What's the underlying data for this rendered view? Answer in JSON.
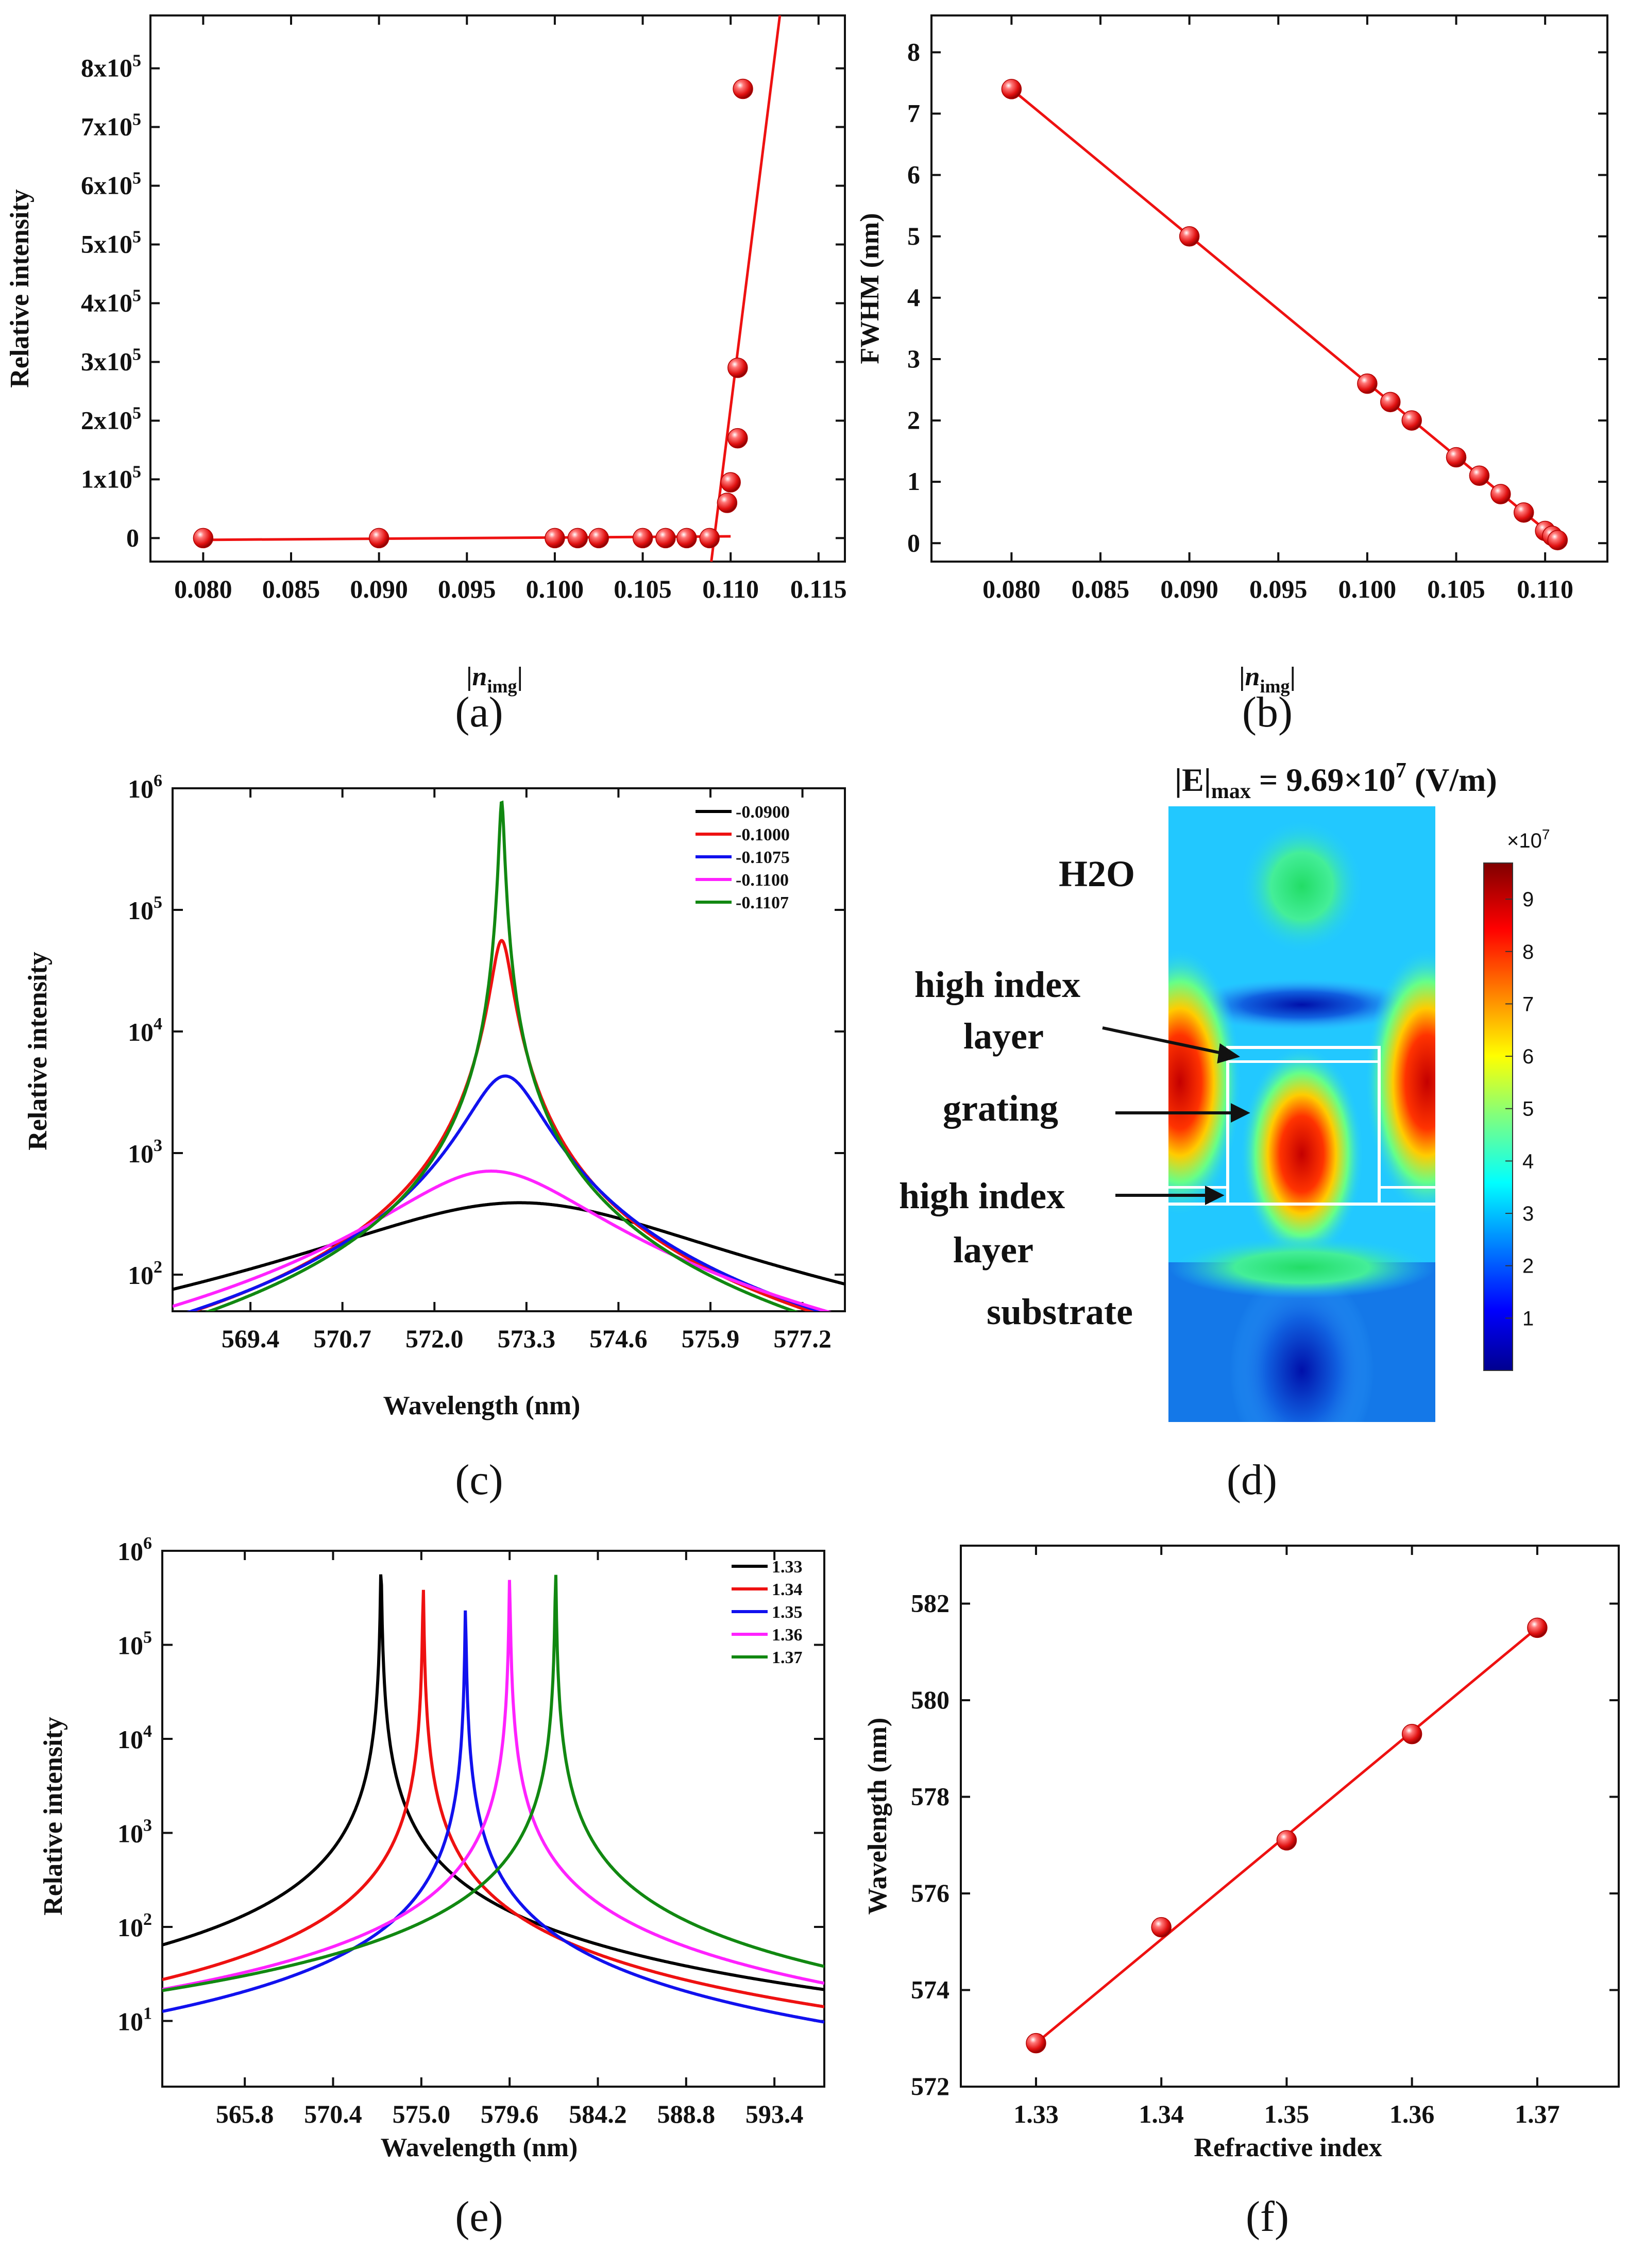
{
  "panels": {
    "a": {
      "caption": "(a)"
    },
    "b": {
      "caption": "(b)"
    },
    "c": {
      "caption": "(c)"
    },
    "d": {
      "caption": "(d)"
    },
    "e": {
      "caption": "(e)"
    },
    "f": {
      "caption": "(f)"
    }
  },
  "colors": {
    "red": "#ee1111",
    "black": "#000000",
    "blue": "#1111ee",
    "magenta": "#ff22ff",
    "green": "#118811"
  },
  "chart_data": [
    {
      "id": "a",
      "type": "scatter",
      "xlabel": "|n_img|",
      "ylabel": "Relative intensity",
      "xlim": [
        0.077,
        0.1165
      ],
      "ylim": [
        -40000,
        890000
      ],
      "xticks": [
        "0.080",
        "0.085",
        "0.090",
        "0.095",
        "0.100",
        "0.105",
        "0.110",
        "0.115"
      ],
      "yticks": [
        "0",
        "1x10^5",
        "2x10^5",
        "3x10^5",
        "4x10^5",
        "5x10^5",
        "6x10^5",
        "7x10^5",
        "8x10^5"
      ],
      "points": [
        [
          0.08,
          0
        ],
        [
          0.09,
          0
        ],
        [
          0.1,
          0
        ],
        [
          0.1013,
          0
        ],
        [
          0.1025,
          0
        ],
        [
          0.105,
          0
        ],
        [
          0.1063,
          0
        ],
        [
          0.1075,
          0
        ],
        [
          0.1088,
          0
        ],
        [
          0.1098,
          60000
        ],
        [
          0.11,
          95000
        ],
        [
          0.1104,
          170000
        ],
        [
          0.1104,
          290000
        ],
        [
          0.1107,
          765000
        ]
      ],
      "fit_lines": [
        [
          [
            0.08,
            -3000
          ],
          [
            0.11,
            3000
          ]
        ],
        [
          [
            0.1089,
            -40000
          ],
          [
            0.1128,
            890000
          ]
        ]
      ]
    },
    {
      "id": "b",
      "type": "scatter",
      "xlabel": "|n_img|",
      "ylabel": "FWHM (nm)",
      "xlim": [
        0.0755,
        0.1135
      ],
      "ylim": [
        -0.3,
        8.6
      ],
      "xticks": [
        "0.080",
        "0.085",
        "0.090",
        "0.095",
        "0.100",
        "0.105",
        "0.110"
      ],
      "yticks": [
        "0",
        "1",
        "2",
        "3",
        "4",
        "5",
        "6",
        "7",
        "8"
      ],
      "points": [
        [
          0.08,
          7.4
        ],
        [
          0.09,
          5.0
        ],
        [
          0.1,
          2.6
        ],
        [
          0.1013,
          2.3
        ],
        [
          0.1025,
          2.0
        ],
        [
          0.105,
          1.4
        ],
        [
          0.1063,
          1.1
        ],
        [
          0.1075,
          0.8
        ],
        [
          0.1088,
          0.5
        ],
        [
          0.11,
          0.2
        ],
        [
          0.1104,
          0.12
        ],
        [
          0.1107,
          0.05
        ]
      ],
      "fit_lines": [
        [
          [
            0.08,
            7.4
          ],
          [
            0.1107,
            0.05
          ]
        ]
      ]
    },
    {
      "id": "c",
      "type": "line",
      "log_y": true,
      "xlabel": "Wavelength (nm)",
      "ylabel": "Relative intensity",
      "xlim": [
        568.3,
        577.8
      ],
      "ylim": [
        50,
        1000000
      ],
      "xticks": [
        "569.4",
        "570.7",
        "572.0",
        "573.3",
        "574.6",
        "575.9",
        "577.2"
      ],
      "series": [
        {
          "name": "-0.0900",
          "color": "black",
          "center": 573.2,
          "peak": 390,
          "hwhm": 2.4
        },
        {
          "name": "-0.1000",
          "color": "red",
          "center": 572.95,
          "peak": 56000,
          "hwhm": 0.13
        },
        {
          "name": "-0.1075",
          "color": "blue",
          "center": 573.0,
          "peak": 4300,
          "hwhm": 0.48
        },
        {
          "name": "-0.1100",
          "color": "magenta",
          "center": 572.8,
          "peak": 710,
          "hwhm": 1.3
        },
        {
          "name": "-0.1107",
          "color": "green",
          "center": 572.95,
          "peak": 780000,
          "hwhm": 0.033
        }
      ]
    },
    {
      "id": "e",
      "type": "line",
      "log_y": true,
      "xlabel": "Wavelength (nm)",
      "ylabel": "Relative intensity",
      "xlim": [
        561.5,
        596.0
      ],
      "ylim": [
        2,
        1000000
      ],
      "xticks": [
        "565.8",
        "570.4",
        "575.0",
        "579.6",
        "584.2",
        "588.8",
        "593.4"
      ],
      "series": [
        {
          "name": "1.33",
          "color": "black",
          "center": 572.9,
          "peak": 800000
        },
        {
          "name": "1.34",
          "color": "red",
          "center": 575.1,
          "peak": 450000
        },
        {
          "name": "1.35",
          "color": "blue",
          "center": 577.3,
          "peak": 260000
        },
        {
          "name": "1.36",
          "color": "magenta",
          "center": 579.6,
          "peak": 550000
        },
        {
          "name": "1.37",
          "color": "green",
          "center": 582.0,
          "peak": 650000
        }
      ]
    },
    {
      "id": "f",
      "type": "scatter",
      "xlabel": "Refractive index",
      "ylabel": "Wavelength (nm)",
      "xlim": [
        1.324,
        1.3765
      ],
      "ylim": [
        572,
        583.2
      ],
      "xticks": [
        "1.33",
        "1.34",
        "1.35",
        "1.36",
        "1.37"
      ],
      "yticks": [
        "572",
        "574",
        "576",
        "578",
        "580",
        "582"
      ],
      "points": [
        [
          1.33,
          572.9
        ],
        [
          1.34,
          575.3
        ],
        [
          1.35,
          577.1
        ],
        [
          1.36,
          579.3
        ],
        [
          1.37,
          581.5
        ]
      ],
      "fit_lines": [
        [
          [
            1.33,
            572.9
          ],
          [
            1.37,
            581.5
          ]
        ]
      ]
    }
  ],
  "field_map": {
    "title_main": "|E|",
    "title_sub": "max",
    "title_rest": " = 9.69×10",
    "title_exp": "7",
    "title_unit": " (V/m)",
    "labels": [
      "H2O",
      "high index",
      "layer",
      "grating",
      "high index",
      "layer",
      "substrate"
    ],
    "colorbar_mult": "×10",
    "colorbar_mult_exp": "7",
    "colorbar_ticks": [
      "1",
      "2",
      "3",
      "4",
      "5",
      "6",
      "7",
      "8",
      "9"
    ]
  }
}
